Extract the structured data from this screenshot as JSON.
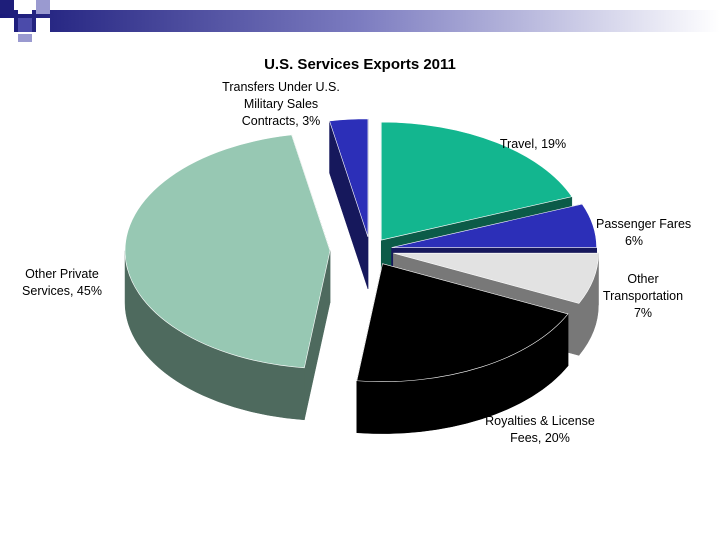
{
  "chart_data": {
    "type": "pie",
    "title": "U.S. Services Exports 2011",
    "slices": [
      {
        "name": "Travel",
        "value": 19,
        "label": "19%",
        "color": "#13b68f",
        "dark": "#0c5b48"
      },
      {
        "name": "Passenger Fares",
        "value": 6,
        "label": "6%",
        "color": "#2c2fb8",
        "dark": "#16185c"
      },
      {
        "name": "Other Transportation",
        "value": 7,
        "label": "7%",
        "color": "#e2e2e2",
        "dark": "#787878"
      },
      {
        "name": "Royalties & License Fees",
        "value": 20,
        "label": "20%",
        "color": "#000000",
        "dark": "#000000"
      },
      {
        "name": "Other Private Services",
        "value": 45,
        "label": "45%",
        "color": "#97c8b3",
        "dark": "#4e6a5e"
      },
      {
        "name": "Transfers Under U.S. Military Sales Contracts",
        "value": 3,
        "label": "3%",
        "color": "#2c2fb8",
        "dark": "#16185c"
      }
    ],
    "legend": "none",
    "style": "3d-exploded"
  }
}
